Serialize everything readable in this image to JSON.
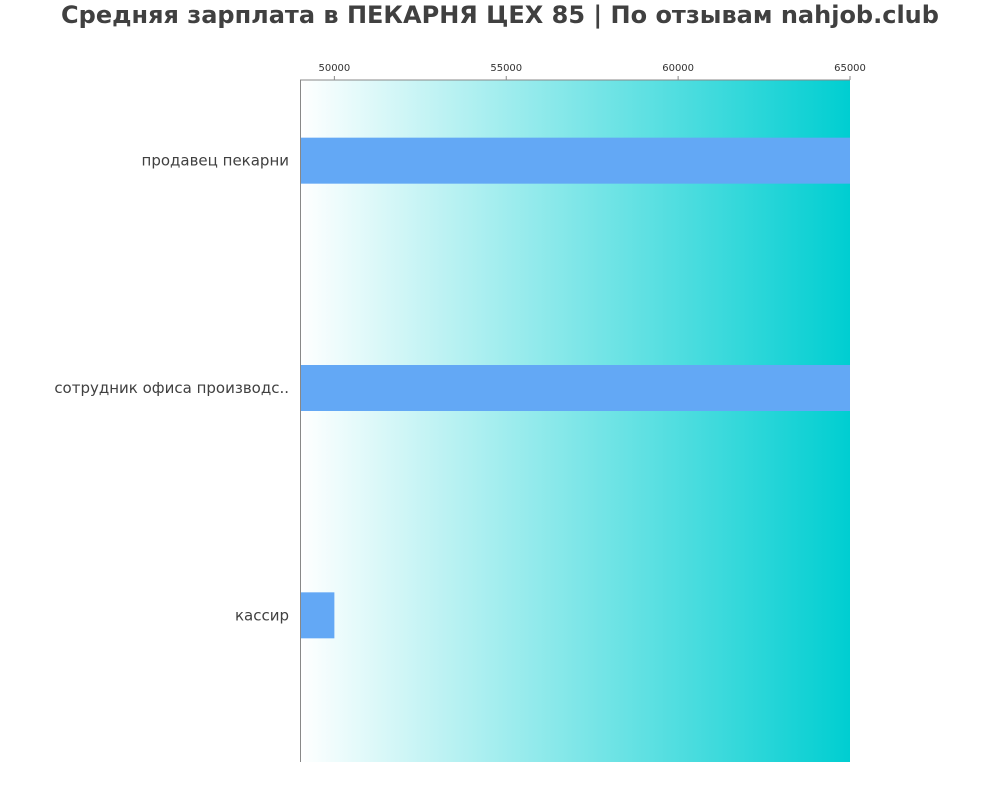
{
  "chart_data": {
    "type": "bar",
    "orientation": "horizontal",
    "title": "Средняя зарплата в ПЕКАРНЯ ЦЕХ 85 | По отзывам nahjob.club",
    "xlabel": "",
    "ylabel": "",
    "categories": [
      "продавец пекарни",
      "сотрудник офиса производс..",
      "кассир"
    ],
    "values": [
      65000,
      65000,
      50000
    ],
    "xlim": [
      49000,
      65000
    ],
    "xticks": [
      50000,
      55000,
      60000,
      65000
    ],
    "x_axis_position": "top",
    "grid": false,
    "legend": "none",
    "colors": {
      "bar": "#63A8F5",
      "background_gradient_start": "#FFFFFF",
      "background_gradient_end": "#00CED1",
      "axis": "#888888",
      "text": "#404040"
    }
  }
}
